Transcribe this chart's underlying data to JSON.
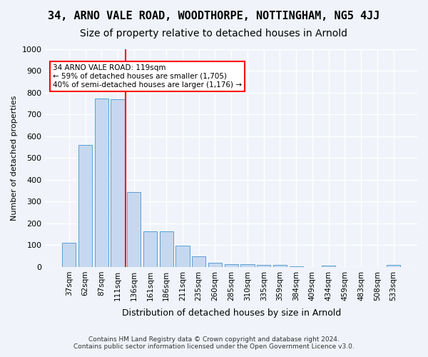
{
  "title": "34, ARNO VALE ROAD, WOODTHORPE, NOTTINGHAM, NG5 4JJ",
  "subtitle": "Size of property relative to detached houses in Arnold",
  "xlabel": "Distribution of detached houses by size in Arnold",
  "ylabel": "Number of detached properties",
  "footer1": "Contains HM Land Registry data © Crown copyright and database right 2024.",
  "footer2": "Contains public sector information licensed under the Open Government Licence v3.0.",
  "categories": [
    "37sqm",
    "62sqm",
    "87sqm",
    "111sqm",
    "136sqm",
    "161sqm",
    "186sqm",
    "211sqm",
    "235sqm",
    "260sqm",
    "285sqm",
    "310sqm",
    "335sqm",
    "359sqm",
    "384sqm",
    "409sqm",
    "434sqm",
    "459sqm",
    "483sqm",
    "508sqm",
    "533sqm"
  ],
  "values": [
    110,
    560,
    775,
    770,
    345,
    163,
    163,
    97,
    50,
    20,
    14,
    12,
    10,
    10,
    2,
    0,
    7,
    0,
    0,
    0,
    10
  ],
  "bar_color": "#c5d8f0",
  "bar_edgecolor": "#5a9fd4",
  "red_line_x": 4.0,
  "annotation_text": "34 ARNO VALE ROAD: 119sqm\n← 59% of detached houses are smaller (1,705)\n40% of semi-detached houses are larger (1,176) →",
  "annotation_box_edgecolor": "red",
  "annotation_box_facecolor": "white",
  "red_line_color": "red",
  "ylim": [
    0,
    1000
  ],
  "yticks": [
    0,
    100,
    200,
    300,
    400,
    500,
    600,
    700,
    800,
    900,
    1000
  ],
  "background_color": "#f0f4fa",
  "grid_color": "white",
  "title_fontsize": 11,
  "subtitle_fontsize": 10
}
